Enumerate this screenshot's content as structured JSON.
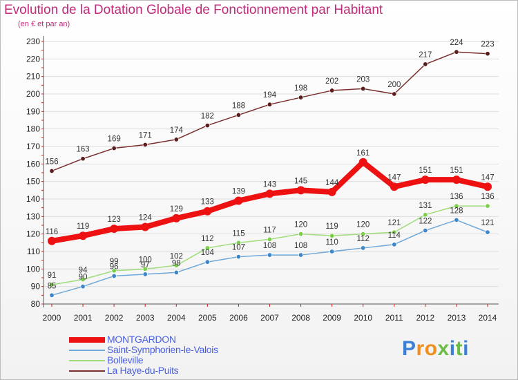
{
  "title": "Evolution de la Dotation Globale de Fonctionnement par Habitant",
  "subtitle": "(en € et par an)",
  "logo": {
    "text": "Proxiti",
    "letters": [
      "P",
      "r",
      "o",
      "x",
      "i",
      "t",
      "i"
    ],
    "colors": [
      "#3b7fd6",
      "#f28e1c",
      "#f28e1c",
      "#6cbd45",
      "#3b7fd6",
      "#6cbd45",
      "#3b7fd6"
    ]
  },
  "chart_data": {
    "type": "line",
    "title": "Evolution de la Dotation Globale de Fonctionnement par Habitant",
    "ylabel": "(en € et par an)",
    "xlabel": "",
    "x": [
      "2000",
      "2001",
      "2002",
      "2003",
      "2004",
      "2005",
      "2006",
      "2007",
      "2008",
      "2009",
      "2010",
      "2011",
      "2012",
      "2013",
      "2014"
    ],
    "ylim": [
      80,
      230
    ],
    "yticks": [
      "80",
      "90",
      "100",
      "110",
      "120",
      "130",
      "140",
      "150",
      "160",
      "170",
      "180",
      "190",
      "200",
      "210",
      "220",
      "230"
    ],
    "grid": "horizontal",
    "legend_position": "bottom-left",
    "series": [
      {
        "name": "La Haye-du-Puits",
        "color": "#7a2e2e",
        "marker": "#5a1e1e",
        "width": "thin",
        "values": [
          156,
          163,
          169,
          171,
          174,
          182,
          188,
          194,
          198,
          202,
          203,
          200,
          217,
          224,
          223
        ]
      },
      {
        "name": "Bolleville",
        "color": "#9fdc7a",
        "marker": "#7ccf4a",
        "width": "thin",
        "values": [
          91,
          94,
          99,
          100,
          102,
          112,
          115,
          117,
          120,
          119,
          120,
          121,
          131,
          136,
          136
        ]
      },
      {
        "name": "Saint-Symphorien-le-Valois",
        "color": "#6ea7d8",
        "marker": "#3f86c8",
        "width": "thin",
        "values": [
          85,
          90,
          96,
          97,
          98,
          104,
          107,
          108,
          108,
          110,
          112,
          114,
          122,
          128,
          121
        ]
      },
      {
        "name": "MONTGARDON",
        "color": "#ee1111",
        "marker": "#ee1111",
        "width": "thick",
        "values": [
          116,
          119,
          123,
          124,
          129,
          133,
          139,
          143,
          145,
          144,
          161,
          147,
          151,
          151,
          147
        ]
      }
    ],
    "legend_order": [
      "MONTGARDON",
      "Saint-Symphorien-le-Valois",
      "Bolleville",
      "La Haye-du-Puits"
    ]
  }
}
